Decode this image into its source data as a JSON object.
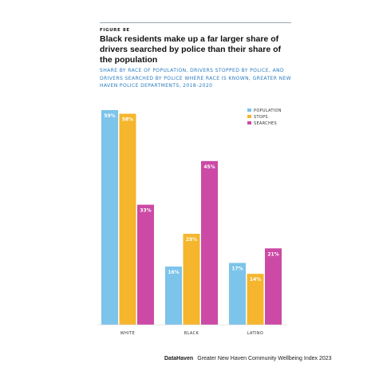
{
  "figure_label": "FIGURE 8E",
  "title": "Black residents make up a far larger share of drivers searched by police than their share of the population",
  "subtitle": "SHARE BY RACE OF POPULATION, DRIVERS STOPPED BY POLICE, AND DRIVERS SEARCHED BY POLICE WHERE RACE IS KNOWN, GREATER NEW HAVEN POLICE DEPARTMENTS, 2018–2020",
  "footer": {
    "brand": "DataHaven",
    "source": "Greater New Haven Community Wellbeing Index 2023"
  },
  "chart_data": {
    "type": "bar",
    "categories": [
      "WHITE",
      "BLACK",
      "LATINO"
    ],
    "series": [
      {
        "name": "POPULATION",
        "color": "#7cc4ea",
        "values": [
          59,
          16,
          17
        ],
        "labels": [
          "59%",
          "16%",
          "17%"
        ]
      },
      {
        "name": "STOPS",
        "color": "#f5b62d",
        "values": [
          58,
          25,
          14
        ],
        "labels": [
          "58%",
          "25%",
          "14%"
        ]
      },
      {
        "name": "SEARCHES",
        "color": "#cc4aa5",
        "values": [
          33,
          45,
          21
        ],
        "labels": [
          "33%",
          "45%",
          "21%"
        ]
      }
    ],
    "ylim": [
      0,
      59
    ],
    "grid": false,
    "legend_position": "top-right"
  }
}
